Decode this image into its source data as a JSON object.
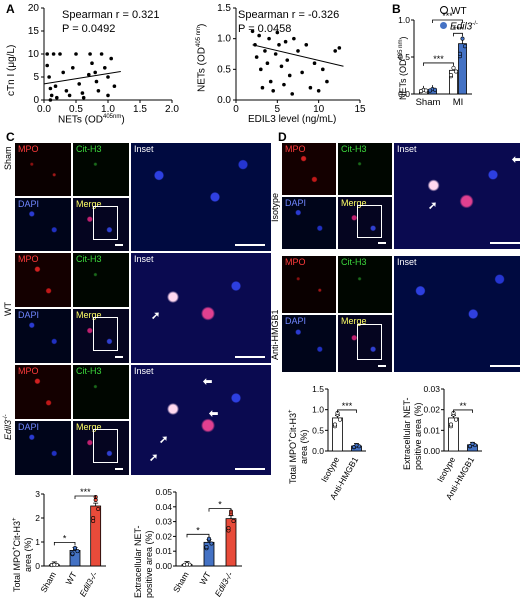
{
  "panels": {
    "A": "A",
    "B": "B",
    "C": "C",
    "D": "D"
  },
  "panelA": {
    "scatter1": {
      "stat_line1": "Spearman r = 0.321",
      "stat_line2": "P = 0.0492",
      "ylabel": "cTn I (μg/L)",
      "xlabel": "NETs (OD",
      "xlabel_sup": "405nm",
      "xlabel_end": ")",
      "xticks": [
        "0.0",
        "0.5",
        "1.0",
        "1.5",
        "2.0"
      ],
      "yticks": [
        "0",
        "5",
        "10",
        "15",
        "20"
      ]
    },
    "scatter2": {
      "stat_line1": "Spearman r = -0.326",
      "stat_line2": "P = 0.0458",
      "ylabel": "NETs (OD",
      "ylabel_sup": "405 nm",
      "ylabel_end": ")",
      "xlabel": "EDIL3 level (ng/mL)",
      "xticks": [
        "0",
        "5",
        "10",
        "15"
      ],
      "yticks": [
        "0.0",
        "0.5",
        "1.0",
        "1.5"
      ]
    }
  },
  "panelB": {
    "legend": [
      "WT",
      "Edil3"
    ],
    "legend_sup": "-/-",
    "ylabel": "NETs (OD",
    "ylabel_sup": "405 nm",
    "ylabel_end": ")",
    "xcats": [
      "Sham",
      "MI"
    ],
    "yticks": [
      "0.0",
      "0.5",
      "1.0"
    ],
    "sig": [
      "***",
      "***",
      "***"
    ]
  },
  "micrographs": {
    "mpo": "MPO",
    "cith3": "Cit-H3",
    "dapi": "DAPI",
    "merge": "Merge",
    "inset": "Inset"
  },
  "panelC": {
    "rows": [
      "Sham",
      "WT",
      "Edil3"
    ],
    "rows_sup": "-/-",
    "chart1": {
      "ylabel_line1": "Total MPO",
      "ylabel_sup1": "+",
      "ylabel_mid": "Cit-H3",
      "ylabel_sup2": "+",
      "ylabel_line2": "area (%)",
      "yticks": [
        "0",
        "1",
        "2",
        "3"
      ],
      "xcats": [
        "Sham",
        "WT",
        "Edil3"
      ],
      "sig": [
        "*",
        "***"
      ]
    },
    "chart2": {
      "ylabel_line1": "Extracellular NET-",
      "ylabel_line2": "positive area (%)",
      "yticks": [
        "0.00",
        "0.01",
        "0.02",
        "0.03",
        "0.04",
        "0.05"
      ],
      "xcats": [
        "Sham",
        "WT",
        "Edil3"
      ],
      "sig": [
        "*",
        "*"
      ]
    }
  },
  "panelD": {
    "rows": [
      "Isotype",
      "Anti-HMGB1"
    ],
    "chart1": {
      "ylabel_line1": "Total MPO",
      "ylabel_sup1": "+",
      "ylabel_mid": "Cit-H3",
      "ylabel_sup2": "+",
      "ylabel_line2": "area (%)",
      "yticks": [
        "0.0",
        "0.5",
        "1.0",
        "1.5"
      ],
      "xcats": [
        "Isotype",
        "Anti-HMGB1"
      ],
      "sig": [
        "***"
      ]
    },
    "chart2": {
      "ylabel_line1": "Extracellular NET-",
      "ylabel_line2": "positive area (%)",
      "yticks": [
        "0.00",
        "0.01",
        "0.02",
        "0.03"
      ],
      "xcats": [
        "Isotype",
        "Anti-HMGB1"
      ],
      "sig": [
        "**"
      ]
    }
  },
  "chart_data": [
    {
      "type": "scatter",
      "panel": "A-left",
      "xlabel": "NETs (OD405nm)",
      "ylabel": "cTn I (μg/L)",
      "xlim": [
        0,
        2
      ],
      "ylim": [
        0,
        20
      ],
      "points": [
        [
          0.05,
          10
        ],
        [
          0.05,
          7.5
        ],
        [
          0.08,
          5
        ],
        [
          0.1,
          2.5
        ],
        [
          0.1,
          0
        ],
        [
          0.12,
          1
        ],
        [
          0.15,
          10
        ],
        [
          0.18,
          3
        ],
        [
          0.2,
          0.5
        ],
        [
          0.25,
          10
        ],
        [
          0.3,
          6
        ],
        [
          0.35,
          2
        ],
        [
          0.4,
          1
        ],
        [
          0.45,
          7
        ],
        [
          0.5,
          10
        ],
        [
          0.55,
          3.5
        ],
        [
          0.6,
          1.5
        ],
        [
          0.62,
          0.5
        ],
        [
          0.7,
          5.5
        ],
        [
          0.72,
          10
        ],
        [
          0.75,
          8
        ],
        [
          0.8,
          6
        ],
        [
          0.82,
          4
        ],
        [
          0.85,
          2
        ],
        [
          0.9,
          10
        ],
        [
          0.95,
          7
        ],
        [
          1.0,
          5
        ],
        [
          1.0,
          1
        ],
        [
          1.05,
          9
        ],
        [
          1.1,
          3
        ]
      ],
      "fit": [
        [
          0,
          3.5
        ],
        [
          1.2,
          6.2
        ]
      ],
      "stats": {
        "spearman_r": 0.321,
        "p": 0.0492
      }
    },
    {
      "type": "scatter",
      "panel": "A-right",
      "xlabel": "EDIL3 level (ng/mL)",
      "ylabel": "NETs (OD405nm)",
      "xlim": [
        0,
        15
      ],
      "ylim": [
        0,
        1.5
      ],
      "points": [
        [
          2,
          1.12
        ],
        [
          2.3,
          0.9
        ],
        [
          2.5,
          0.7
        ],
        [
          2.8,
          1.05
        ],
        [
          3,
          0.5
        ],
        [
          3.2,
          0.2
        ],
        [
          3.5,
          0.8
        ],
        [
          3.8,
          0.6
        ],
        [
          4,
          1.0
        ],
        [
          4.2,
          0.3
        ],
        [
          4.5,
          0.15
        ],
        [
          4.8,
          0.75
        ],
        [
          5,
          1.1
        ],
        [
          5.2,
          0.9
        ],
        [
          5.5,
          0.55
        ],
        [
          5.8,
          0.25
        ],
        [
          6,
          0.95
        ],
        [
          6.2,
          0.65
        ],
        [
          6.5,
          0.4
        ],
        [
          6.8,
          0.1
        ],
        [
          7,
          1.0
        ],
        [
          7.5,
          0.8
        ],
        [
          8,
          0.45
        ],
        [
          8.5,
          0.9
        ],
        [
          9,
          0.2
        ],
        [
          9.5,
          0.6
        ],
        [
          10,
          0.15
        ],
        [
          10.5,
          0.5
        ],
        [
          11,
          0.3
        ],
        [
          12,
          0.8
        ],
        [
          12.5,
          0.85
        ]
      ],
      "fit": [
        [
          2,
          0.9
        ],
        [
          13,
          0.55
        ]
      ],
      "stats": {
        "spearman_r": -0.326,
        "p": 0.0458
      }
    },
    {
      "type": "bar",
      "panel": "B",
      "categories": [
        "Sham",
        "MI"
      ],
      "ylabel": "NETs (OD405 nm)",
      "ylim": [
        0,
        1.0
      ],
      "series": [
        {
          "name": "WT",
          "values": [
            0.05,
            0.32
          ],
          "color": "#ffffff"
        },
        {
          "name": "Edil3-/-",
          "values": [
            0.06,
            0.68
          ],
          "color": "#4472c4"
        }
      ]
    },
    {
      "type": "bar",
      "panel": "C-left",
      "categories": [
        "Sham",
        "WT",
        "Edil3-/-"
      ],
      "ylabel": "Total MPO+Cit-H3+ area (%)",
      "ylim": [
        0,
        3
      ],
      "values": [
        0.05,
        0.65,
        2.5
      ],
      "colors": [
        "#ffffff",
        "#4472c4",
        "#e84b3a"
      ]
    },
    {
      "type": "bar",
      "panel": "C-right",
      "categories": [
        "Sham",
        "WT",
        "Edil3-/-"
      ],
      "ylabel": "Extracellular NET-positive area (%)",
      "ylim": [
        0,
        0.05
      ],
      "values": [
        0.001,
        0.016,
        0.032
      ],
      "colors": [
        "#ffffff",
        "#4472c4",
        "#e84b3a"
      ]
    },
    {
      "type": "bar",
      "panel": "D-left",
      "categories": [
        "Isotype",
        "Anti-HMGB1"
      ],
      "ylabel": "Total MPO+Cit-H3+ area (%)",
      "ylim": [
        0,
        1.5
      ],
      "values": [
        0.8,
        0.12
      ],
      "colors": [
        "#ffffff",
        "#4472c4"
      ]
    },
    {
      "type": "bar",
      "panel": "D-right",
      "categories": [
        "Isotype",
        "Anti-HMGB1"
      ],
      "ylabel": "Extracellular NET-positive area (%)",
      "ylim": [
        0,
        0.03
      ],
      "values": [
        0.016,
        0.003
      ],
      "colors": [
        "#ffffff",
        "#4472c4"
      ]
    }
  ]
}
